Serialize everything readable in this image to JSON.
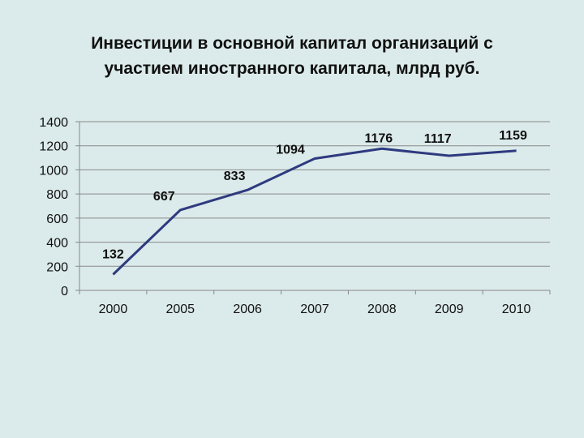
{
  "title_line1": "Инвестиции в основной капитал организаций с",
  "title_line2": "участием иностранного капитала, млрд руб.",
  "chart_data": {
    "type": "line",
    "title": "Инвестиции в основной капитал организаций с участием иностранного капитала, млрд руб.",
    "categories": [
      "2000",
      "2005",
      "2006",
      "2007",
      "2008",
      "2009",
      "2010"
    ],
    "series": [
      {
        "name": "Инвестиции",
        "values": [
          132,
          667,
          833,
          1094,
          1176,
          1117,
          1159
        ],
        "color": "#2e3a7f"
      }
    ],
    "data_labels": [
      "132",
      "667",
      "833",
      "1094",
      "1176",
      "1117",
      "1159"
    ],
    "xlabel": "",
    "ylabel": "",
    "ylim": [
      0,
      1400
    ],
    "yticks": [
      "0",
      "200",
      "400",
      "600",
      "800",
      "1000",
      "1200",
      "1400"
    ],
    "grid": true,
    "legend": "none"
  }
}
